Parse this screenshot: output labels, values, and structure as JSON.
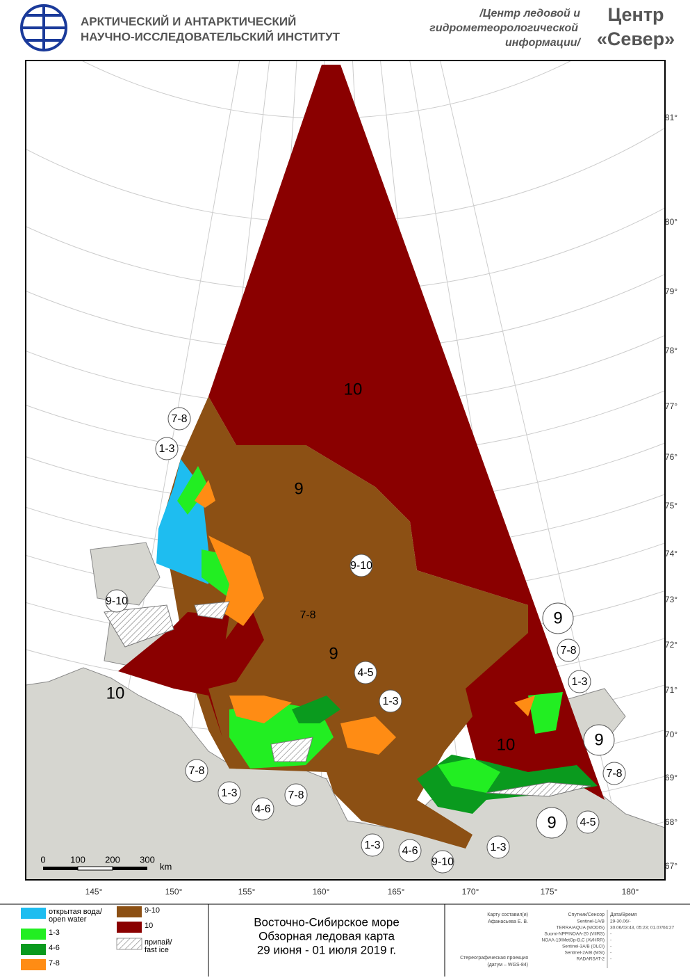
{
  "header": {
    "institute": [
      "АРКТИЧЕСКИЙ И АНТАРКТИЧЕСКИЙ",
      "НАУЧНО-ИССЛЕДОВАТЕЛЬСКИЙ ИНСТИТУТ"
    ],
    "center_info": [
      "/Центр ледовой и",
      "гидрометеорологической",
      "информации/"
    ],
    "center_name": [
      "Центр",
      "«Север»"
    ]
  },
  "map": {
    "latitude_labels": [
      "81°",
      "80°",
      "79°",
      "78°",
      "77°",
      "76°",
      "75°",
      "74°",
      "73°",
      "72°",
      "71°",
      "70°",
      "69°",
      "68°",
      "67°"
    ],
    "longitude_labels": [
      "145°",
      "150°",
      "155°",
      "160°",
      "165°",
      "170°",
      "175°",
      "180°"
    ],
    "zone_labels": [
      "10",
      "9",
      "9-10",
      "7-8",
      "1-3",
      "9-10",
      "7-8",
      "9",
      "4-5",
      "1-3",
      "10",
      "9",
      "7-8",
      "1-3",
      "9",
      "10",
      "7-8",
      "7-8",
      "1-3",
      "4-6",
      "7-8",
      "9",
      "4-5",
      "1-3",
      "4-6",
      "9-10",
      "1-3"
    ],
    "scale_bar": {
      "ticks": [
        "0",
        "100",
        "200",
        "300"
      ],
      "unit": "km"
    }
  },
  "legend": [
    {
      "label": [
        "открытая вода/",
        "open water"
      ],
      "color": "#1ebdf0"
    },
    {
      "label": [
        "1-3"
      ],
      "color": "#22ee22"
    },
    {
      "label": [
        "4-6"
      ],
      "color": "#0a9a1e"
    },
    {
      "label": [
        "7-8"
      ],
      "color": "#ff8c14"
    },
    {
      "label": [
        "9-10"
      ],
      "color": "#8c5014"
    },
    {
      "label": [
        "10"
      ],
      "color": "#8a0000"
    },
    {
      "label": [
        "припай/",
        "fast ice"
      ],
      "color": "hatch"
    }
  ],
  "title": [
    "Восточно-Сибирское море",
    "Обзорная ледовая карта",
    "29 июня - 01 июля 2019 г."
  ],
  "credits": {
    "compiled_by_label": "Карту составил(и)",
    "compiled_by": "Афанасьева Е. В.",
    "columns": [
      "Спутник/Сенсор",
      "Дата/Время"
    ],
    "rows": [
      [
        "Sentinel-1A/B",
        "29-30.06/-"
      ],
      [
        "TERRA/AQUA (MODIS)",
        "30.06/03:43, 05:23; 01.07/04:27"
      ],
      [
        "Suomi-NPP/NOAA-20 (VIIRS)",
        "-"
      ],
      [
        "NOAA-19/MetOp-B,C (AVHRR)",
        "-"
      ],
      [
        "Sentinel-3A/B (OLCI)",
        "-"
      ],
      [
        "Sentinel-2A/B (MSI)",
        "-"
      ],
      [
        "RADARSAT-2",
        "-"
      ]
    ],
    "projection": [
      "Стереографическая проекция",
      "(датум – WGS-84)"
    ]
  }
}
